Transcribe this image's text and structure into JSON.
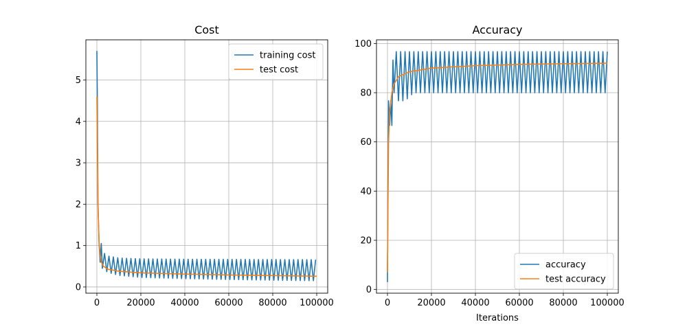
{
  "chart_data": [
    {
      "type": "line",
      "title": "Cost",
      "xlabel": "",
      "ylabel": "",
      "xlim": [
        -5000,
        105000
      ],
      "ylim": [
        -0.15,
        5.97
      ],
      "xticks": [
        0,
        20000,
        40000,
        60000,
        80000,
        100000
      ],
      "xtick_labels": [
        "0",
        "20000",
        "40000",
        "60000",
        "80000",
        "100000"
      ],
      "yticks": [
        0,
        1,
        2,
        3,
        4,
        5
      ],
      "ytick_labels": [
        "0",
        "1",
        "2",
        "3",
        "4",
        "5"
      ],
      "grid": true,
      "legend_position": "upper right",
      "series": [
        {
          "name": "training cost",
          "color": "#1f77b4",
          "style": "oscillating",
          "oscillation_period": 2000,
          "start": [
            [
              0,
              5.7
            ],
            [
              200,
              4.6
            ],
            [
              500,
              2.0
            ],
            [
              1000,
              1.05
            ],
            [
              1500,
              0.6
            ],
            [
              2000,
              1.05
            ],
            [
              2500,
              0.45
            ]
          ],
          "upper": [
            [
              2500,
              0.85
            ],
            [
              5000,
              0.75
            ],
            [
              10000,
              0.7
            ],
            [
              20000,
              0.68
            ],
            [
              40000,
              0.67
            ],
            [
              100000,
              0.66
            ]
          ],
          "lower": [
            [
              2500,
              0.45
            ],
            [
              5000,
              0.35
            ],
            [
              10000,
              0.28
            ],
            [
              20000,
              0.23
            ],
            [
              40000,
              0.2
            ],
            [
              70000,
              0.17
            ],
            [
              100000,
              0.15
            ]
          ]
        },
        {
          "name": "test cost",
          "color": "#ff7f0e",
          "style": "curve",
          "points": [
            [
              0,
              4.6
            ],
            [
              300,
              3.0
            ],
            [
              600,
              1.8
            ],
            [
              1000,
              1.1
            ],
            [
              1500,
              0.75
            ],
            [
              2000,
              0.6
            ],
            [
              3000,
              0.5
            ],
            [
              5000,
              0.43
            ],
            [
              10000,
              0.38
            ],
            [
              20000,
              0.34
            ],
            [
              40000,
              0.31
            ],
            [
              60000,
              0.29
            ],
            [
              80000,
              0.275
            ],
            [
              100000,
              0.26
            ]
          ]
        }
      ]
    },
    {
      "type": "line",
      "title": "Accuracy",
      "xlabel": "Iterations",
      "ylabel": "",
      "xlim": [
        -5000,
        105000
      ],
      "ylim": [
        -1.5,
        101.5
      ],
      "xticks": [
        0,
        20000,
        40000,
        60000,
        80000,
        100000
      ],
      "xtick_labels": [
        "0",
        "20000",
        "40000",
        "60000",
        "80000",
        "100000"
      ],
      "yticks": [
        0,
        20,
        40,
        60,
        80,
        100
      ],
      "ytick_labels": [
        "0",
        "20",
        "40",
        "60",
        "80",
        "100"
      ],
      "grid": true,
      "legend_position": "lower right",
      "series": [
        {
          "name": "accuracy",
          "color": "#1f77b4",
          "style": "oscillating",
          "oscillation_period": 2000,
          "start": [
            [
              0,
              3.0
            ],
            [
              200,
              40.0
            ],
            [
              500,
              76.7
            ],
            [
              1000,
              66.7
            ],
            [
              1500,
              76.7
            ],
            [
              2000,
              66.7
            ],
            [
              2500,
              93.3
            ],
            [
              3000,
              80.0
            ]
          ],
          "upper": [
            [
              3000,
              93.3
            ],
            [
              4000,
              96.7
            ],
            [
              100000,
              96.7
            ]
          ],
          "lower": [
            [
              3000,
              76.7
            ],
            [
              8000,
              76.7
            ],
            [
              12000,
              80.0
            ],
            [
              100000,
              80.0
            ]
          ]
        },
        {
          "name": "test accuracy",
          "color": "#ff7f0e",
          "style": "curve",
          "points": [
            [
              0,
              7.0
            ],
            [
              200,
              30.0
            ],
            [
              500,
              60.0
            ],
            [
              1000,
              72.0
            ],
            [
              2000,
              80.0
            ],
            [
              3000,
              83.5
            ],
            [
              5000,
              86.5
            ],
            [
              10000,
              88.5
            ],
            [
              20000,
              90.0
            ],
            [
              40000,
              91.0
            ],
            [
              60000,
              91.5
            ],
            [
              80000,
              91.8
            ],
            [
              100000,
              92.0
            ]
          ]
        }
      ]
    }
  ]
}
